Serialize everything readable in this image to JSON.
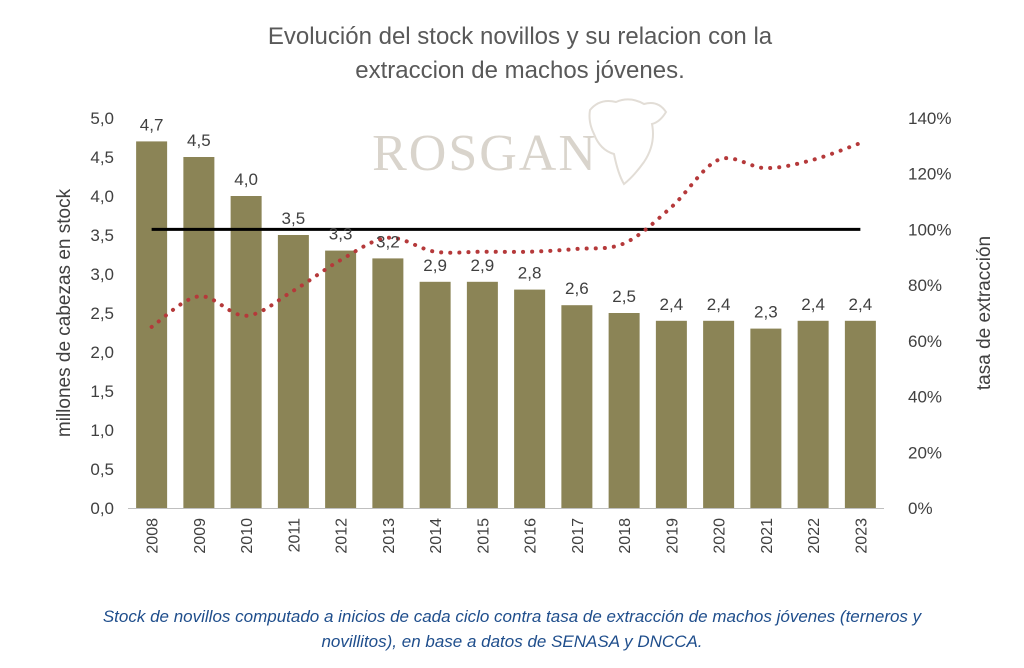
{
  "chart_data": {
    "type": "bar",
    "title_lines": [
      "Evolución del stock novillos y su relacion con la",
      "extraccion de machos jóvenes."
    ],
    "watermark": "ROSGAN",
    "categories": [
      "2008",
      "2009",
      "2010",
      "2011",
      "2012",
      "2013",
      "2014",
      "2015",
      "2016",
      "2017",
      "2018",
      "2019",
      "2020",
      "2021",
      "2022",
      "2023"
    ],
    "series": [
      {
        "axis": "left",
        "kind": "bar",
        "values": [
          4.7,
          4.5,
          4.0,
          3.5,
          3.3,
          3.2,
          2.9,
          2.9,
          2.8,
          2.6,
          2.5,
          2.4,
          2.4,
          2.3,
          2.4,
          2.4
        ],
        "data_labels": [
          "4,7",
          "4,5",
          "4,0",
          "3,5",
          "3,3",
          "3,2",
          "2,9",
          "2,9",
          "2,8",
          "2,6",
          "2,5",
          "2,4",
          "2,4",
          "2,3",
          "2,4",
          "2,4"
        ],
        "color": "#8b8456"
      },
      {
        "axis": "right",
        "kind": "line-dotted",
        "values": [
          65,
          76,
          69,
          78,
          89,
          97,
          92,
          92,
          92,
          93,
          95,
          108,
          125,
          122,
          125,
          131
        ],
        "color": "#b5393a"
      },
      {
        "axis": "right",
        "kind": "reference-line",
        "value": 100,
        "color": "#000000"
      }
    ],
    "y_left": {
      "label": "millones de cabezas en stock",
      "ylim": [
        0,
        5.0
      ],
      "ticks": [
        0,
        0.5,
        1.0,
        1.5,
        2.0,
        2.5,
        3.0,
        3.5,
        4.0,
        4.5,
        5.0
      ],
      "tick_labels": [
        "0,0",
        "0,5",
        "1,0",
        "1,5",
        "2,0",
        "2,5",
        "3,0",
        "3,5",
        "4,0",
        "4,5",
        "5,0"
      ]
    },
    "y_right": {
      "label": "tasa de extracción",
      "ylim": [
        0,
        140
      ],
      "ticks": [
        0,
        20,
        40,
        60,
        80,
        100,
        120,
        140
      ],
      "tick_labels": [
        "0%",
        "20%",
        "40%",
        "60%",
        "80%",
        "100%",
        "120%",
        "140%"
      ]
    },
    "grid": false,
    "legend": "none"
  },
  "caption_lines": [
    "Stock de novillos computado a inicios de cada ciclo contra tasa de extracción de machos jóvenes (terneros y",
    "novillitos), en base a datos de SENASA y DNCCA."
  ]
}
